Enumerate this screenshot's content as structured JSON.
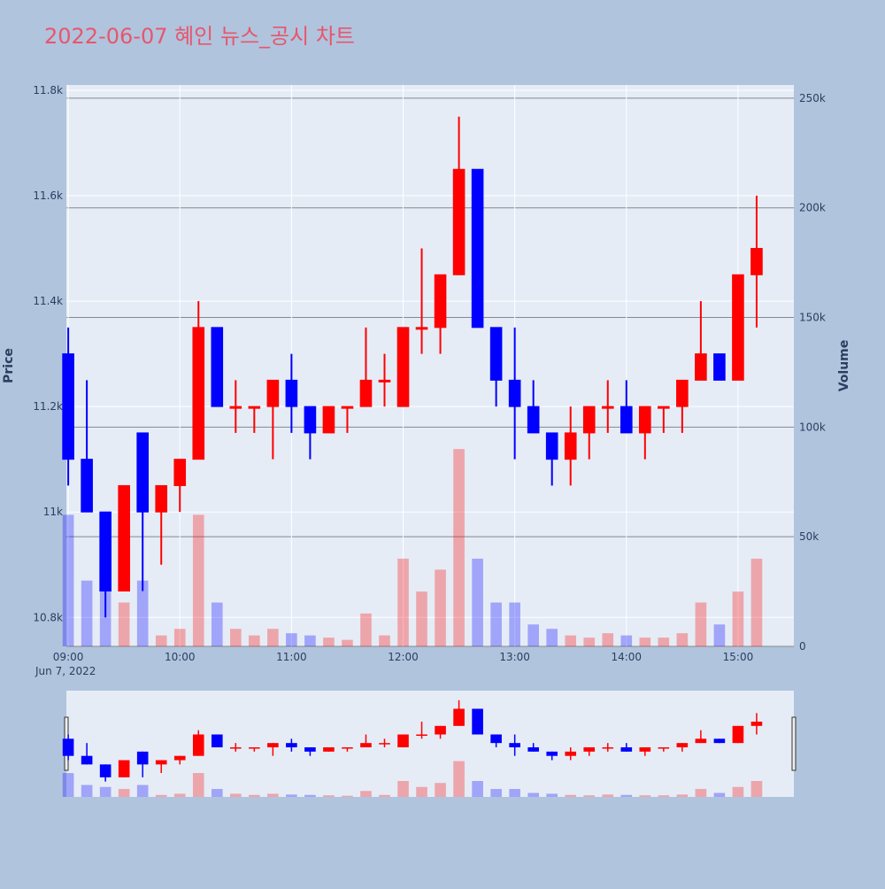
{
  "chart_data": {
    "type": "candlestick",
    "title": "2022-06-07 혜인 뉴스_공시 차트",
    "y_label": "Price",
    "y2_label": "Volume",
    "x_date_label": "Jun 7, 2022",
    "increasing_color": "#ff0000",
    "decreasing_color": "#0000ff",
    "x": [
      "09:00",
      "09:10",
      "09:20",
      "09:30",
      "09:40",
      "09:50",
      "10:00",
      "10:10",
      "10:20",
      "10:30",
      "10:40",
      "10:50",
      "11:00",
      "11:10",
      "11:20",
      "11:30",
      "11:40",
      "11:50",
      "12:00",
      "12:10",
      "12:20",
      "12:30",
      "12:40",
      "12:50",
      "13:00",
      "13:10",
      "13:20",
      "13:30",
      "13:40",
      "13:50",
      "14:00",
      "14:10",
      "14:20",
      "14:30",
      "14:40",
      "14:50",
      "15:00",
      "15:10"
    ],
    "open": [
      11300,
      11100,
      11000,
      10850,
      11150,
      11000,
      11050,
      11100,
      11350,
      11200,
      11200,
      11200,
      11250,
      11200,
      11150,
      11200,
      11200,
      11250,
      11200,
      11350,
      11350,
      11450,
      11650,
      11350,
      11250,
      11200,
      11150,
      11100,
      11150,
      11200,
      11200,
      11150,
      11200,
      11200,
      11250,
      11300,
      11250,
      11450
    ],
    "high": [
      11350,
      11250,
      11000,
      11050,
      11150,
      11050,
      11100,
      11400,
      11350,
      11250,
      11200,
      11250,
      11300,
      11200,
      11200,
      11200,
      11350,
      11300,
      11350,
      11500,
      11450,
      11750,
      11650,
      11350,
      11350,
      11250,
      11150,
      11200,
      11200,
      11250,
      11250,
      11200,
      11200,
      11250,
      11400,
      11300,
      11450,
      11600
    ],
    "low": [
      11050,
      11000,
      10800,
      10850,
      10850,
      10900,
      11000,
      11100,
      11200,
      11150,
      11150,
      11100,
      11150,
      11100,
      11150,
      11150,
      11200,
      11200,
      11200,
      11300,
      11300,
      11450,
      11350,
      11200,
      11100,
      11150,
      11050,
      11050,
      11100,
      11150,
      11150,
      11100,
      11150,
      11150,
      11250,
      11250,
      11250,
      11350
    ],
    "close": [
      11100,
      11000,
      10850,
      11050,
      11000,
      11050,
      11100,
      11350,
      11200,
      11200,
      11200,
      11250,
      11200,
      11150,
      11200,
      11200,
      11250,
      11250,
      11350,
      11350,
      11450,
      11650,
      11350,
      11250,
      11200,
      11150,
      11100,
      11150,
      11200,
      11200,
      11150,
      11200,
      11200,
      11250,
      11300,
      11250,
      11450,
      11500
    ],
    "volume": [
      60000,
      30000,
      25000,
      20000,
      30000,
      5000,
      8000,
      60000,
      20000,
      8000,
      5000,
      8000,
      6000,
      5000,
      4000,
      3000,
      15000,
      5000,
      40000,
      25000,
      35000,
      90000,
      40000,
      20000,
      20000,
      10000,
      8000,
      5000,
      4000,
      6000,
      5000,
      4000,
      4000,
      6000,
      20000,
      10000,
      25000,
      40000
    ],
    "xlim": [
      "08:59",
      "15:30"
    ],
    "xticks": [
      "09:00",
      "10:00",
      "11:00",
      "12:00",
      "13:00",
      "14:00",
      "15:00"
    ],
    "ylim": [
      10745,
      11810
    ],
    "yticks": [
      {
        "value": 10800,
        "label": "10.8k"
      },
      {
        "value": 11000,
        "label": "11k"
      },
      {
        "value": 11200,
        "label": "11.2k"
      },
      {
        "value": 11400,
        "label": "11.4k"
      },
      {
        "value": 11600,
        "label": "11.6k"
      },
      {
        "value": 11800,
        "label": "11.8k"
      }
    ],
    "y2lim": [
      0,
      256000
    ],
    "y2ticks": [
      0,
      {
        "value": 50000,
        "label": "50k"
      },
      {
        "value": 100000,
        "label": "100k"
      },
      {
        "value": 150000,
        "label": "150k"
      },
      {
        "value": 200000,
        "label": "200k"
      },
      {
        "value": 250000,
        "label": "250k"
      }
    ]
  }
}
